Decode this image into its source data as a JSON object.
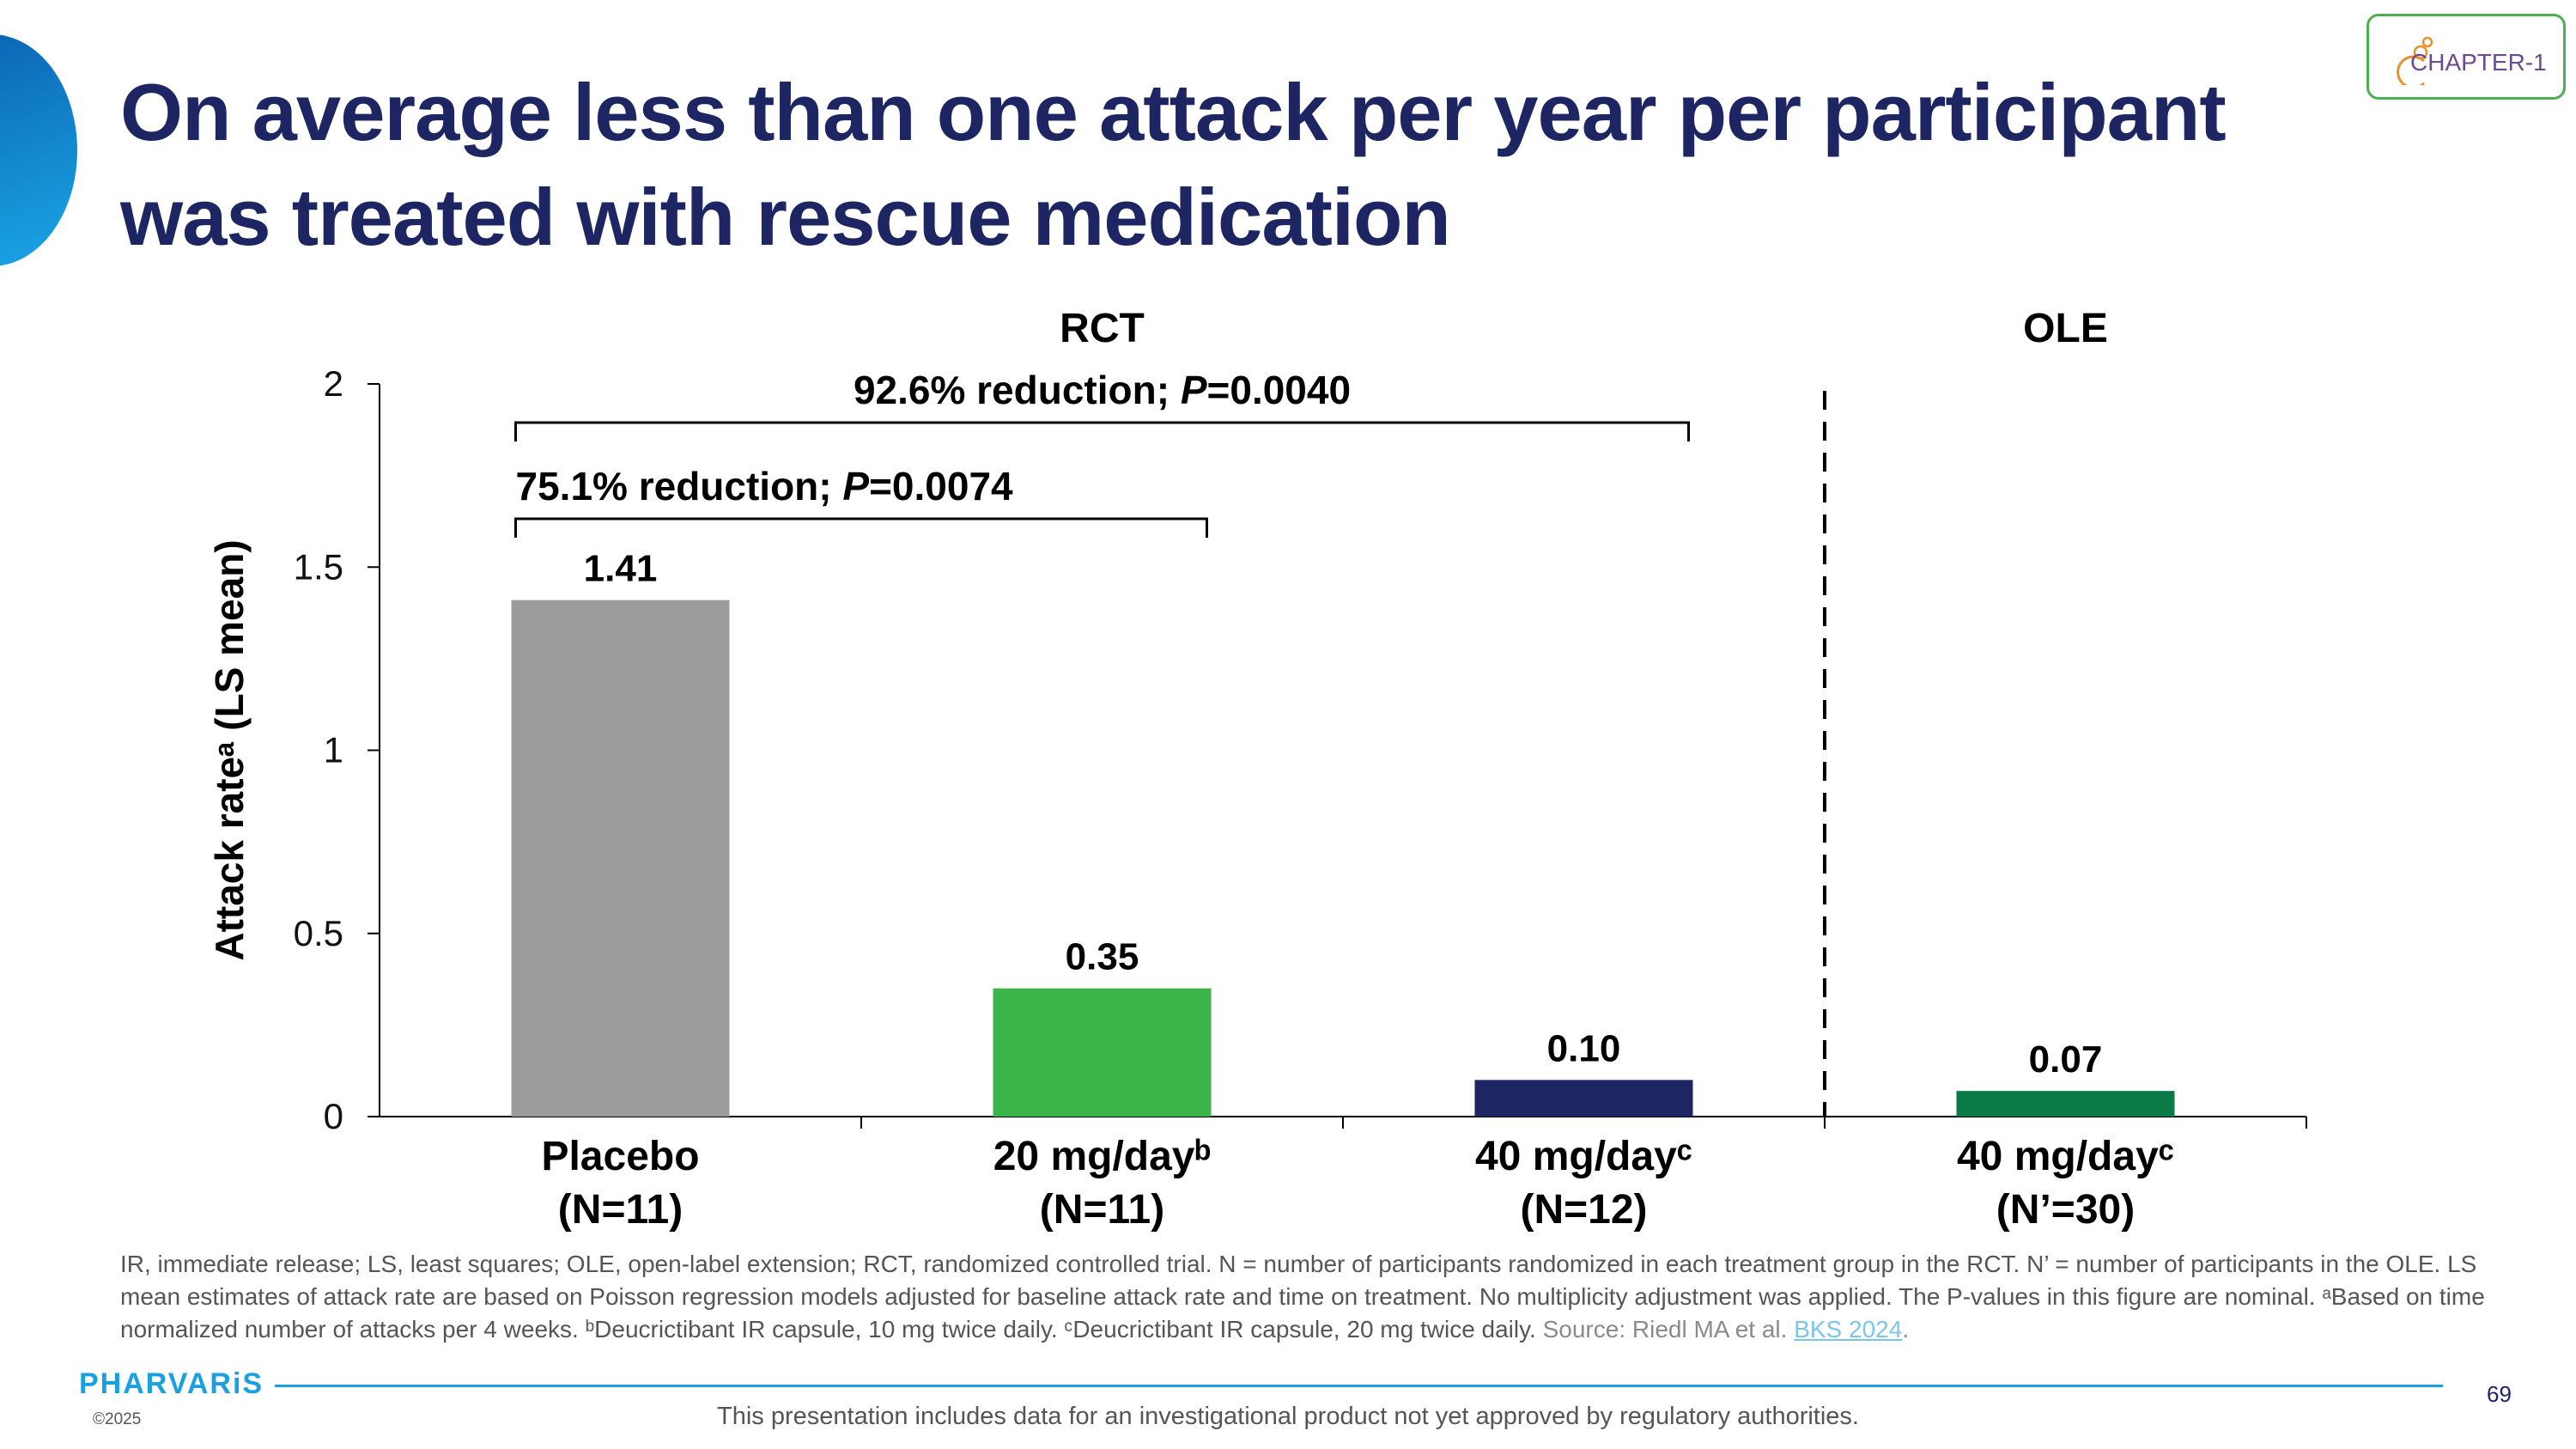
{
  "slide": {
    "title": "On average less than one attack per year per participant was treated with rescue medication",
    "logo_text": "CHAPTER-1",
    "brand": "PHARVARiS",
    "copyright": "©2025",
    "page_number": "69",
    "disclaimer": "This presentation includes data for an investigational product not yet approved by regulatory authorities.",
    "footnote_main": "IR, immediate release; LS, least squares; OLE, open-label extension; RCT, randomized controlled trial. N = number of participants randomized in each treatment group in the RCT. N’ = number of participants in the OLE. LS mean estimates of attack rate are based on Poisson regression models adjusted for baseline attack rate and  time on treatment. No multiplicity adjustment was applied. The P-values in this figure are nominal. ᵃBased on time normalized number of attacks per 4 weeks. ᵇDeucrictibant IR capsule, 10 mg twice daily. ᶜDeucrictibant IR capsule, 20 mg twice daily.",
    "footnote_source": "Source: Riedl MA et al.",
    "footnote_ref": "BKS 2024",
    "footnote_end": "."
  },
  "chart_data": {
    "type": "bar",
    "ylabel": "Attack rateᵃ (LS mean)",
    "ylim": [
      0,
      2
    ],
    "yticks": [
      {
        "value": 0,
        "label": "0"
      },
      {
        "value": 0.5,
        "label": "0.5"
      },
      {
        "value": 1,
        "label": "1"
      },
      {
        "value": 1.5,
        "label": "1.5"
      },
      {
        "value": 2,
        "label": "2"
      }
    ],
    "sections": [
      {
        "label": "RCT",
        "categories": [
          0,
          1,
          2
        ]
      },
      {
        "label": "OLE",
        "categories": [
          3
        ]
      }
    ],
    "categories": [
      {
        "line1": "Placebo",
        "line2": "(N=11)",
        "value": 1.41,
        "value_label": "1.41",
        "color": "#9b9b9b"
      },
      {
        "line1": "20 mg/dayᵇ",
        "line2": "(N=11)",
        "value": 0.35,
        "value_label": "0.35",
        "color": "#3bb54a"
      },
      {
        "line1": "40 mg/dayᶜ",
        "line2": "(N=12)",
        "value": 0.1,
        "value_label": "0.10",
        "color": "#1d2563"
      },
      {
        "line1": "40 mg/dayᶜ",
        "line2": "(N’=30)",
        "value": 0.07,
        "value_label": "0.07",
        "color": "#0b7a47"
      }
    ],
    "brackets": [
      {
        "from": 0,
        "to": 2,
        "text": "92.6% reduction; ",
        "p_label": "P",
        "p_value": "=0.0040"
      },
      {
        "from": 0,
        "to": 1,
        "text": "75.1% reduction; ",
        "p_label": "P",
        "p_value": "=0.0074"
      }
    ],
    "section_divider": "dashed"
  }
}
